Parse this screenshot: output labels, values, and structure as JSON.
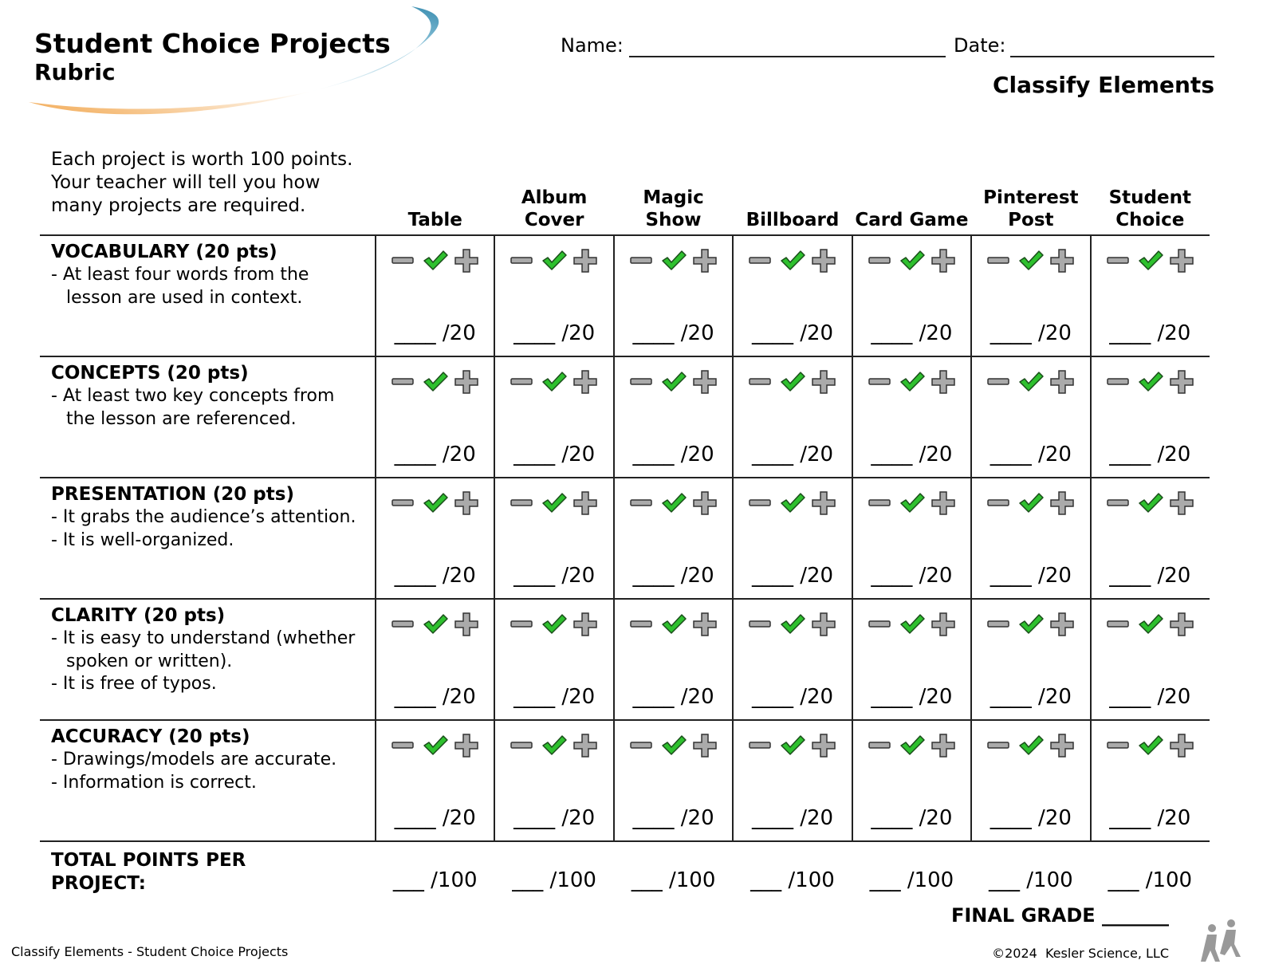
{
  "header": {
    "title": "Student Choice Projects",
    "subtitle": "Rubric",
    "name_label": "Name:",
    "date_label": "Date:",
    "unit": "Classify Elements"
  },
  "table": {
    "intro": "Each project is worth 100 points. Your teacher will tell you how many projects are required.",
    "columns": [
      "Table",
      "Album Cover",
      "Magic Show",
      "Billboard",
      "Card Game",
      "Pinterest Post",
      "Student Choice"
    ],
    "rows": [
      {
        "title": "VOCABULARY (20 pts)",
        "items": [
          "- At least four words from the lesson are used in context."
        ],
        "score": "____ /20"
      },
      {
        "title": "CONCEPTS (20 pts)",
        "items": [
          "- At least two key concepts from the lesson are referenced."
        ],
        "score": "____ /20"
      },
      {
        "title": "PRESENTATION (20 pts)",
        "items": [
          "-  It grabs the audience’s attention.",
          "-  It is well-organized."
        ],
        "score": "____ /20"
      },
      {
        "title": "CLARITY (20 pts)",
        "items": [
          "- It is easy to understand (whether spoken or written).",
          "- It is free of typos."
        ],
        "score": "____ /20"
      },
      {
        "title": "ACCURACY (20 pts)",
        "items": [
          "- Drawings/models are accurate.",
          "- Information is correct."
        ],
        "score": "____ /20"
      }
    ],
    "total": {
      "label": "TOTAL POINTS PER PROJECT:",
      "score": "___ /100"
    }
  },
  "final_grade": "FINAL GRADE _______",
  "footer": {
    "left": "Classify Elements - Student Choice Projects",
    "right": "©2024  Kesler Science, LLC"
  }
}
